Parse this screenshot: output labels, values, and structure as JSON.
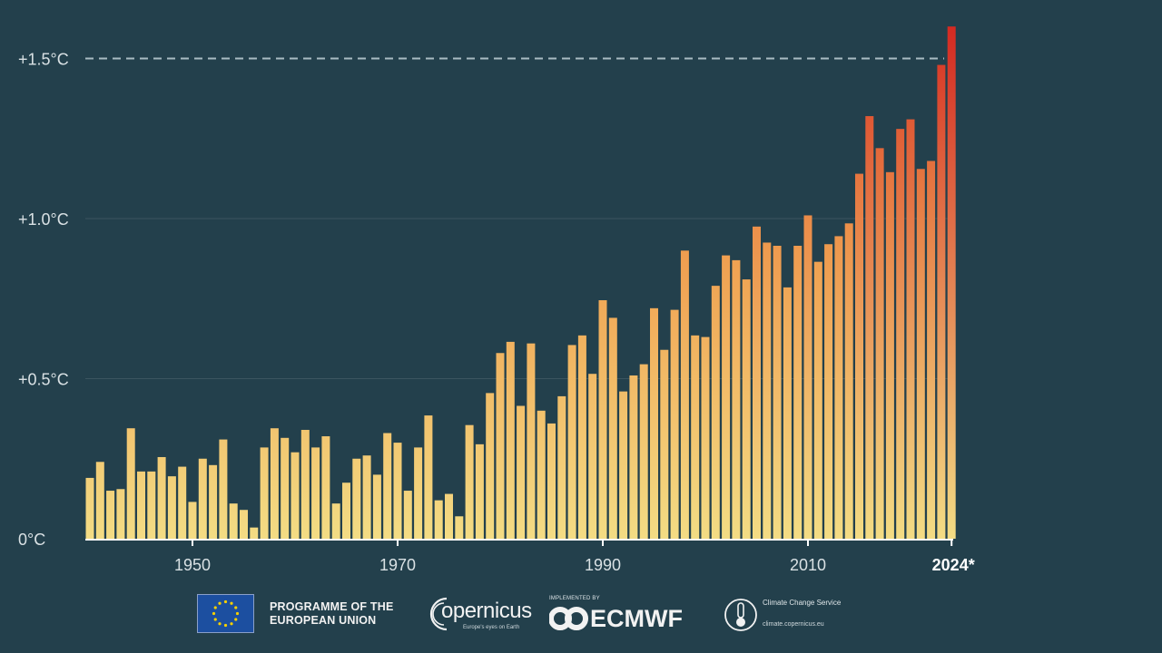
{
  "chart_data": {
    "type": "bar",
    "title": "",
    "xlabel": "",
    "ylabel": "",
    "ylim": [
      0,
      1.6
    ],
    "yticks": [
      {
        "value": 0,
        "label": "0°C"
      },
      {
        "value": 0.5,
        "label": "+0.5°C"
      },
      {
        "value": 1.0,
        "label": "+1.0°C"
      },
      {
        "value": 1.5,
        "label": "+1.5°C"
      }
    ],
    "xticks": [
      {
        "year": 1950,
        "label": "1950"
      },
      {
        "year": 1970,
        "label": "1970"
      },
      {
        "year": 1990,
        "label": "1990"
      },
      {
        "year": 2010,
        "label": "2010"
      },
      {
        "year": 2024,
        "label": "2024*"
      }
    ],
    "reference_line": {
      "value": 1.5,
      "style": "dashed"
    },
    "years": [
      1940,
      1941,
      1942,
      1943,
      1944,
      1945,
      1946,
      1947,
      1948,
      1949,
      1950,
      1951,
      1952,
      1953,
      1954,
      1955,
      1956,
      1957,
      1958,
      1959,
      1960,
      1961,
      1962,
      1963,
      1964,
      1965,
      1966,
      1967,
      1968,
      1969,
      1970,
      1971,
      1972,
      1973,
      1974,
      1975,
      1976,
      1977,
      1978,
      1979,
      1980,
      1981,
      1982,
      1983,
      1984,
      1985,
      1986,
      1987,
      1988,
      1989,
      1990,
      1991,
      1992,
      1993,
      1994,
      1995,
      1996,
      1997,
      1998,
      1999,
      2000,
      2001,
      2002,
      2003,
      2004,
      2005,
      2006,
      2007,
      2008,
      2009,
      2010,
      2011,
      2012,
      2013,
      2014,
      2015,
      2016,
      2017,
      2018,
      2019,
      2020,
      2021,
      2022,
      2023,
      2024
    ],
    "values": [
      0.19,
      0.24,
      0.15,
      0.155,
      0.345,
      0.21,
      0.21,
      0.255,
      0.195,
      0.225,
      0.115,
      0.25,
      0.23,
      0.31,
      0.11,
      0.09,
      0.035,
      0.285,
      0.345,
      0.315,
      0.27,
      0.34,
      0.285,
      0.32,
      0.11,
      0.175,
      0.25,
      0.26,
      0.2,
      0.33,
      0.3,
      0.15,
      0.285,
      0.385,
      0.12,
      0.14,
      0.07,
      0.355,
      0.295,
      0.455,
      0.58,
      0.615,
      0.415,
      0.61,
      0.4,
      0.36,
      0.445,
      0.605,
      0.635,
      0.515,
      0.745,
      0.69,
      0.46,
      0.51,
      0.545,
      0.72,
      0.59,
      0.715,
      0.9,
      0.635,
      0.63,
      0.79,
      0.885,
      0.87,
      0.81,
      0.975,
      0.925,
      0.915,
      0.785,
      0.915,
      1.01,
      0.865,
      0.92,
      0.945,
      0.985,
      1.14,
      1.32,
      1.22,
      1.145,
      1.28,
      1.31,
      1.155,
      1.18,
      1.48,
      1.6
    ],
    "color_scale": {
      "low": "#f3dc84",
      "mid": "#f0a050",
      "high": "#d42a22"
    },
    "background": "#23404c",
    "axis_color": "#ffffff",
    "tick_text_color": "#d9e1e4",
    "gridline_color": "#3b5560"
  },
  "footer": {
    "eu_programme": "PROGRAMME OF THE EUROPEAN UNION",
    "copernicus_word": "opernicus",
    "copernicus_sub": "Europe's eyes on Earth",
    "ecmwf_prefix": "IMPLEMENTED BY",
    "ecmwf_word": "ECMWF",
    "c3s_name": "Climate Change Service",
    "c3s_url": "climate.copernicus.eu"
  }
}
